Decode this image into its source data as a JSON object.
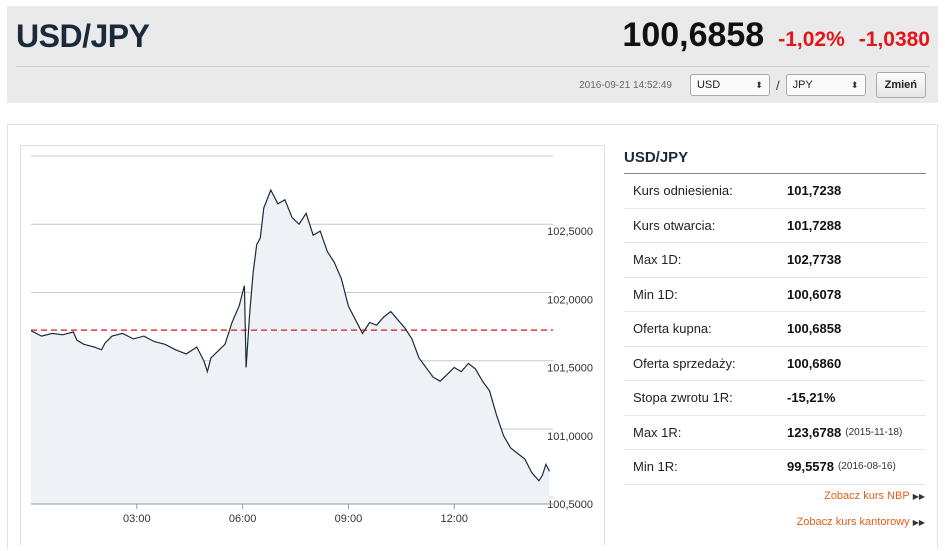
{
  "header": {
    "pair": "USD/JPY",
    "rate": "100,6858",
    "change_pct": "-1,02%",
    "change_abs": "-1,0380",
    "timestamp": "2016-09-21 14:52:49",
    "from_currency": "USD",
    "to_currency": "JPY",
    "separator": "/",
    "swap_button": "Zmień"
  },
  "info": {
    "title": "USD/JPY",
    "rows": [
      {
        "label": "Kurs odniesienia:",
        "value": "101,7238",
        "extra": ""
      },
      {
        "label": "Kurs otwarcia:",
        "value": "101,7288",
        "extra": ""
      },
      {
        "label": "Max 1D:",
        "value": "102,7738",
        "extra": ""
      },
      {
        "label": "Min 1D:",
        "value": "100,6078",
        "extra": ""
      },
      {
        "label": "Oferta kupna:",
        "value": "100,6858",
        "extra": ""
      },
      {
        "label": "Oferta sprzedaży:",
        "value": "100,6860",
        "extra": ""
      },
      {
        "label": "Stopa zwrotu 1R:",
        "value": "-15,21%",
        "extra": ""
      },
      {
        "label": "Max 1R:",
        "value": "123,6788",
        "extra": "(2015-11-18)"
      },
      {
        "label": "Min 1R:",
        "value": "99,5578",
        "extra": "(2016-08-16)"
      }
    ],
    "links": [
      "Zobacz kurs NBP",
      "Zobacz kurs kantorowy"
    ],
    "link_icon": "double-triangle-right-icon"
  },
  "colors": {
    "negative": "#e3151a",
    "line": "#1c2b3a",
    "reference": "#e03a3a",
    "link": "#e0601b"
  },
  "chart_data": {
    "type": "line",
    "x_tick_labels": [
      "03:00",
      "06:00",
      "09:00",
      "12:00"
    ],
    "x_ticks": [
      3,
      6,
      9,
      12
    ],
    "y_tick_labels": [
      "102,5000",
      "102,0000",
      "101,5000",
      "101,0000",
      "100,5000"
    ],
    "y_ticks": [
      102.5,
      102.0,
      101.5,
      101.0,
      100.5
    ],
    "xlim": [
      0,
      14.8
    ],
    "ylim": [
      100.45,
      103.0
    ],
    "reference_line": 101.7238,
    "grid": true,
    "series": [
      {
        "x": [
          0.0,
          0.3,
          0.6,
          0.9,
          1.2,
          1.3,
          1.5,
          1.8,
          2.0,
          2.1,
          2.3,
          2.6,
          2.9,
          3.2,
          3.5,
          3.8,
          4.1,
          4.4,
          4.7,
          4.9,
          5.0,
          5.1,
          5.3,
          5.5,
          5.7,
          5.9,
          6.05,
          6.1,
          6.2,
          6.3,
          6.4,
          6.5,
          6.6,
          6.8,
          7.0,
          7.2,
          7.4,
          7.6,
          7.8,
          8.0,
          8.2,
          8.4,
          8.6,
          8.8,
          9.0,
          9.2,
          9.4,
          9.6,
          9.8,
          10.0,
          10.2,
          10.4,
          10.6,
          10.8,
          11.0,
          11.2,
          11.4,
          11.6,
          11.8,
          12.0,
          12.2,
          12.4,
          12.6,
          12.8,
          13.0,
          13.2,
          13.4,
          13.6,
          13.8,
          14.0,
          14.2,
          14.4,
          14.5,
          14.6,
          14.7
        ],
        "y": [
          101.72,
          101.68,
          101.7,
          101.69,
          101.71,
          101.65,
          101.62,
          101.6,
          101.58,
          101.63,
          101.68,
          101.7,
          101.66,
          101.68,
          101.64,
          101.62,
          101.58,
          101.55,
          101.6,
          101.5,
          101.42,
          101.52,
          101.57,
          101.62,
          101.78,
          101.9,
          102.05,
          101.45,
          101.85,
          102.15,
          102.35,
          102.4,
          102.62,
          102.75,
          102.65,
          102.68,
          102.55,
          102.5,
          102.58,
          102.42,
          102.45,
          102.3,
          102.22,
          102.1,
          101.9,
          101.8,
          101.7,
          101.78,
          101.76,
          101.82,
          101.86,
          101.8,
          101.74,
          101.66,
          101.52,
          101.45,
          101.38,
          101.35,
          101.4,
          101.45,
          101.42,
          101.48,
          101.44,
          101.35,
          101.28,
          101.1,
          100.95,
          100.86,
          100.82,
          100.78,
          100.68,
          100.62,
          100.66,
          100.74,
          100.69
        ]
      }
    ]
  }
}
